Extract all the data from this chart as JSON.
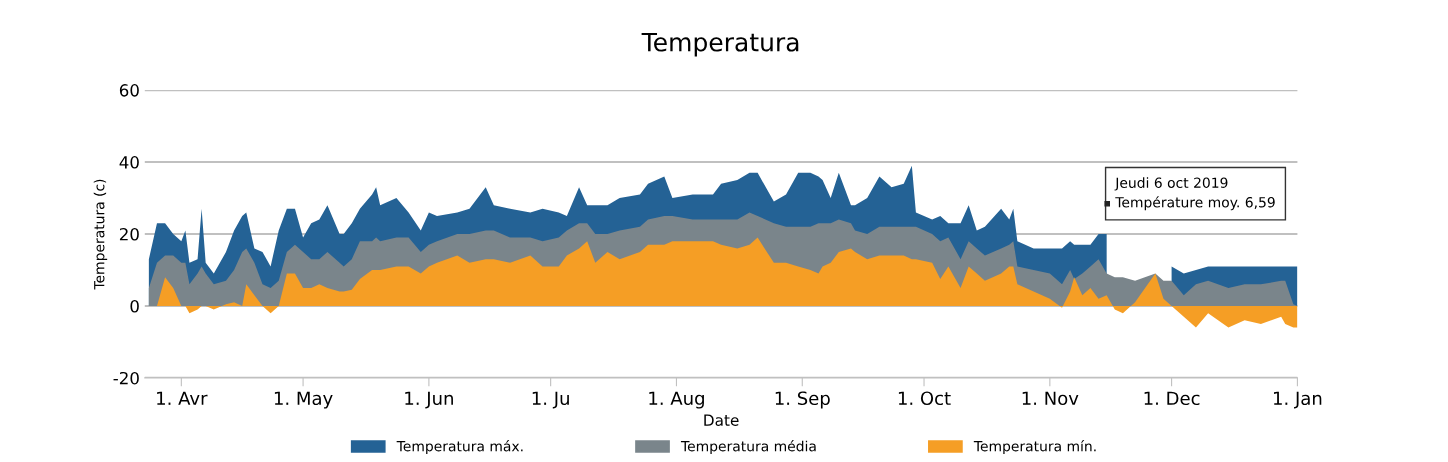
{
  "chart_data": {
    "type": "area",
    "title": "Temperatura",
    "xlabel": "Date",
    "ylabel": "Temperatura (c)",
    "x": [
      "2019-03-24",
      "2019-03-26",
      "2019-03-28",
      "2019-03-30",
      "2019-04-01",
      "2019-04-02",
      "2019-04-03",
      "2019-04-05",
      "2019-04-06",
      "2019-04-07",
      "2019-04-09",
      "2019-04-12",
      "2019-04-14",
      "2019-04-16",
      "2019-04-17",
      "2019-04-19",
      "2019-04-21",
      "2019-04-23",
      "2019-04-25",
      "2019-04-27",
      "2019-04-29",
      "2019-05-01",
      "2019-05-03",
      "2019-05-05",
      "2019-05-07",
      "2019-05-10",
      "2019-05-11",
      "2019-05-13",
      "2019-05-15",
      "2019-05-18",
      "2019-05-19",
      "2019-05-20",
      "2019-05-24",
      "2019-05-27",
      "2019-05-30",
      "2019-06-01",
      "2019-06-03",
      "2019-06-08",
      "2019-06-11",
      "2019-06-15",
      "2019-06-17",
      "2019-06-21",
      "2019-06-26",
      "2019-06-29",
      "2019-07-03",
      "2019-07-05",
      "2019-07-08",
      "2019-07-10",
      "2019-07-12",
      "2019-07-15",
      "2019-07-18",
      "2019-07-23",
      "2019-07-25",
      "2019-07-29",
      "2019-07-31",
      "2019-08-05",
      "2019-08-10",
      "2019-08-12",
      "2019-08-16",
      "2019-08-19",
      "2019-08-21",
      "2019-08-25",
      "2019-08-28",
      "2019-08-31",
      "2019-09-03",
      "2019-09-05",
      "2019-09-06",
      "2019-09-08",
      "2019-09-10",
      "2019-09-13",
      "2019-09-14",
      "2019-09-17",
      "2019-09-20",
      "2019-09-23",
      "2019-09-26",
      "2019-09-28",
      "2019-09-29",
      "2019-10-03",
      "2019-10-05",
      "2019-10-07",
      "2019-10-10",
      "2019-10-12",
      "2019-10-14",
      "2019-10-16",
      "2019-10-20",
      "2019-10-22",
      "2019-10-23",
      "2019-10-24",
      "2019-10-28",
      "2019-11-01",
      "2019-11-04",
      "2019-11-06",
      "2019-11-07",
      "2019-11-09",
      "2019-11-11",
      "2019-11-13",
      "2019-11-15",
      "2019-11-17",
      "2019-11-19",
      "2019-11-22",
      "2019-11-27",
      "2019-11-29",
      "2019-12-01",
      "2019-12-04",
      "2019-12-07",
      "2019-12-10",
      "2019-12-15",
      "2019-12-19",
      "2019-12-23",
      "2019-12-28",
      "2019-12-29",
      "2019-12-31",
      "2020-01-01"
    ],
    "series": [
      {
        "name": "Temperatura máx.",
        "color": "#246295",
        "values": [
          13,
          23,
          23,
          20,
          18,
          21,
          12,
          13,
          27,
          12,
          9,
          15,
          21,
          25,
          26,
          16,
          15,
          11,
          21,
          27,
          27,
          19,
          23,
          24,
          28,
          20,
          20,
          23,
          27,
          31,
          33,
          28,
          30,
          26,
          21,
          26,
          25,
          26,
          27,
          33,
          28,
          27,
          26,
          27,
          26,
          25,
          33,
          28,
          28,
          28,
          30,
          31,
          34,
          36,
          30,
          31,
          31,
          34,
          35,
          37,
          37,
          29,
          31,
          37,
          37,
          36,
          35,
          30,
          37,
          28,
          28,
          30,
          36,
          33,
          34,
          39,
          26,
          24,
          25,
          23,
          23,
          28,
          21,
          22,
          27,
          24,
          27,
          18,
          16,
          16,
          16,
          18,
          17,
          17,
          17,
          20,
          20,
          null,
          null,
          null,
          null,
          null,
          11,
          9,
          10,
          11,
          11,
          11,
          11,
          11,
          11,
          11,
          11
        ]
      },
      {
        "name": "Temperatura média",
        "color": "#7a858b",
        "values": [
          5,
          12,
          14,
          14,
          12,
          12,
          6,
          9,
          11,
          9,
          6,
          7,
          10,
          15,
          16,
          12,
          6,
          5,
          7,
          15,
          17,
          15,
          13,
          13,
          15,
          12,
          11,
          13,
          18,
          18,
          19,
          18,
          19,
          19,
          15,
          17,
          18,
          20,
          20,
          21,
          21,
          19,
          19,
          18,
          19,
          21,
          23,
          23,
          20,
          20,
          21,
          22,
          24,
          25,
          25,
          24,
          24,
          24,
          24,
          26,
          25,
          23,
          22,
          22,
          22,
          23,
          23,
          23,
          24,
          23,
          21,
          20,
          22,
          22,
          22,
          22,
          22,
          20,
          18,
          19,
          13,
          18,
          16,
          14,
          16,
          17,
          18,
          11,
          10,
          9,
          6,
          10,
          7.5,
          9,
          11,
          13,
          9,
          8,
          8,
          7,
          9,
          7,
          7,
          3,
          6,
          7,
          5,
          6,
          6,
          7,
          7,
          0.5,
          0
        ]
      },
      {
        "name": "Temperatura mín.",
        "color": "#f59e25",
        "values": [
          0,
          0,
          8,
          5,
          0,
          0,
          -2,
          -1,
          0,
          0,
          -1,
          0.5,
          1,
          0,
          6,
          3,
          0,
          -2,
          0,
          9,
          9,
          5,
          5,
          6,
          5,
          4,
          4,
          4.5,
          7.5,
          10,
          10,
          10,
          11,
          11,
          9,
          11,
          12,
          14,
          12,
          13,
          13,
          12,
          14,
          11,
          11,
          14,
          16,
          18,
          12,
          15,
          13,
          15,
          17,
          17,
          18,
          18,
          18,
          17,
          16,
          17,
          19,
          12,
          12,
          11,
          10,
          9,
          11,
          12,
          15,
          16,
          15,
          13,
          14,
          14,
          14,
          13,
          13,
          12,
          7.5,
          11,
          5,
          11,
          9,
          7,
          9,
          11,
          11,
          6,
          4,
          2,
          -0.5,
          4,
          8,
          3,
          5,
          2,
          3,
          -1,
          -2,
          1,
          9,
          2,
          0,
          -3,
          -6,
          -2,
          -6,
          -4,
          -5,
          -3,
          -5,
          -6,
          -6
        ]
      }
    ],
    "xlim": [
      "2019-03-23",
      "2020-01-01"
    ],
    "xticks": [
      {
        "value": "2019-04-01",
        "label": "1. Avr"
      },
      {
        "value": "2019-05-01",
        "label": "1. May"
      },
      {
        "value": "2019-06-01",
        "label": "1. Jun"
      },
      {
        "value": "2019-07-01",
        "label": "1. Ju"
      },
      {
        "value": "2019-08-01",
        "label": "1. Aug"
      },
      {
        "value": "2019-09-01",
        "label": "1. Sep"
      },
      {
        "value": "2019-10-01",
        "label": "1. Oct"
      },
      {
        "value": "2019-11-01",
        "label": "1. Nov"
      },
      {
        "value": "2019-12-01",
        "label": "1. Dec"
      },
      {
        "value": "2020-01-01",
        "label": "1. Jan"
      }
    ],
    "ylim": [
      -20,
      60
    ],
    "yticks": [
      -20,
      0,
      20,
      40,
      60
    ],
    "grid": "y",
    "legend": "bottom",
    "annotations": [
      "Jeudi 6 oct 2019",
      "Température moy. 6,59"
    ]
  }
}
